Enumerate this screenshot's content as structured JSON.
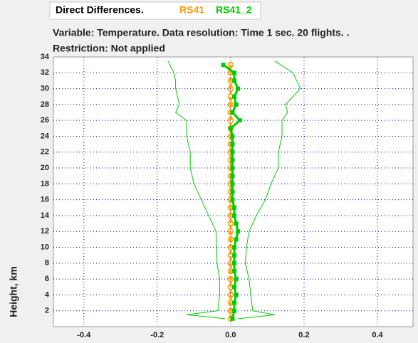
{
  "chart_data": {
    "type": "line",
    "title": "Direct Differences.",
    "subtitle": "Variable: Temperature. Data resolution: Time 1 sec. 20 flights. .",
    "restriction": "Restriction: Not applied",
    "y_label": "Height, km",
    "xlim": [
      -0.483,
      0.497
    ],
    "ylim": [
      0,
      34
    ],
    "xticks": [
      -0.4,
      -0.2,
      {
        "value": 0,
        "label": "0.0"
      },
      0.2,
      0.4
    ],
    "yticks": [
      2,
      4,
      6,
      8,
      10,
      12,
      14,
      16,
      18,
      20,
      22,
      24,
      26,
      28,
      30,
      32,
      34
    ],
    "grid": true,
    "series": [
      {
        "name": "RS41",
        "color": "#ff9900",
        "marker": "circle",
        "dash": true,
        "y": [
          1,
          2,
          3,
          4,
          5,
          6,
          7,
          8,
          9,
          10,
          11,
          12,
          13,
          14,
          15,
          16,
          17,
          18,
          19,
          20,
          21,
          22,
          23,
          24,
          25,
          26,
          27,
          28,
          29,
          30,
          31,
          32,
          33
        ],
        "values": [
          0,
          0,
          0,
          0,
          0,
          0,
          0,
          0,
          0,
          0,
          0,
          0,
          0,
          0,
          0,
          0,
          0,
          0,
          0,
          0,
          0,
          0,
          0,
          0,
          0,
          0,
          0,
          0,
          0,
          0,
          0,
          0,
          0
        ]
      },
      {
        "name": "RS41_2",
        "color": "#00cc00",
        "marker": "square",
        "y": [
          1,
          2,
          3,
          4,
          5,
          6,
          7,
          8,
          9,
          10,
          11,
          12,
          13,
          14,
          15,
          16,
          17,
          18,
          19,
          20,
          21,
          22,
          23,
          24,
          25,
          26,
          27,
          28,
          29,
          30,
          31,
          32,
          33
        ],
        "values": [
          0.005,
          0.01,
          0.01,
          0.015,
          0.01,
          0.015,
          0.01,
          0.01,
          0.01,
          0.01,
          0.015,
          0.02,
          0.015,
          0.01,
          0.01,
          0.005,
          0.005,
          0.005,
          0.005,
          0.005,
          0.005,
          0.005,
          0.005,
          0.005,
          0.0,
          0.025,
          0.005,
          0.015,
          0.01,
          0.02,
          0.01,
          0.01,
          -0.02
        ]
      },
      {
        "color": "#00cc00",
        "y": [
          1,
          1.5,
          2,
          4,
          6,
          8,
          10,
          12,
          14,
          16,
          18,
          20,
          22,
          24,
          26,
          27,
          28,
          30,
          31,
          32,
          33.5
        ],
        "values": [
          -0.015,
          -0.12,
          -0.035,
          -0.03,
          -0.03,
          -0.037,
          -0.038,
          -0.04,
          -0.06,
          -0.08,
          -0.1,
          -0.11,
          -0.11,
          -0.12,
          -0.12,
          -0.15,
          -0.14,
          -0.15,
          -0.15,
          -0.155,
          -0.171
        ]
      },
      {
        "color": "#00cc00",
        "y": [
          1,
          1.5,
          2,
          4,
          6,
          8,
          10,
          12,
          14,
          16,
          18,
          20,
          22,
          24,
          26,
          27,
          28,
          30,
          31,
          32,
          33.5
        ],
        "values": [
          0.02,
          0.12,
          0.06,
          0.055,
          0.05,
          0.04,
          0.043,
          0.05,
          0.07,
          0.095,
          0.11,
          0.13,
          0.13,
          0.14,
          0.14,
          0.155,
          0.15,
          0.19,
          0.18,
          0.17,
          0.12
        ]
      }
    ]
  }
}
